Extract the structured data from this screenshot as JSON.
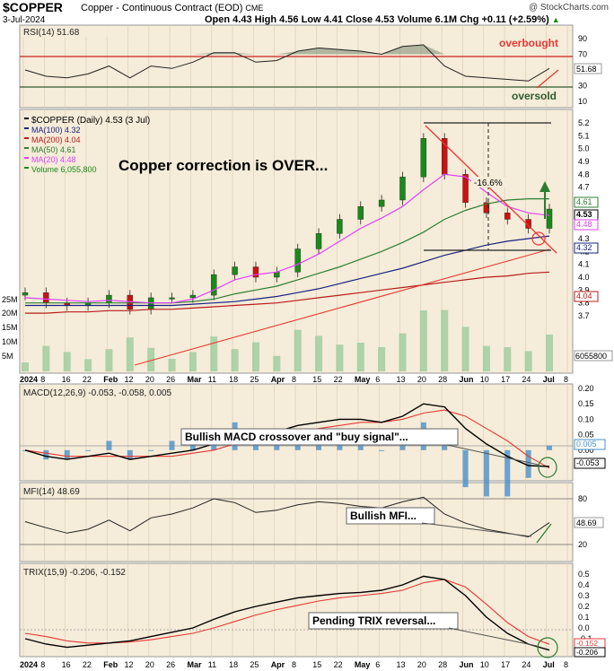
{
  "header": {
    "symbol": "$COPPER",
    "description": "Copper - Continuous Contract (EOD)",
    "exchange": "CME",
    "date": "3-Jul-2024",
    "stats": "Open 4.43  High 4.56  Low 4.41  Close 4.53  Volume 6.1M  Chg +0.11 (+2.59%)",
    "stats_arrow": "▲",
    "brand": "@ StockCharts.com"
  },
  "colors": {
    "panel_bg": "#f5ecd9",
    "grid": "#d9ccb0",
    "price_up": "#1a8a1a",
    "price_down": "#cc1111",
    "ma100": "#1a237e",
    "ma200": "#b71c1c",
    "ma50": "#2e7d32",
    "ma20": "#e040fb",
    "volume": "#9ccc9c",
    "macd_hist": "#4a90c8",
    "annotation_red": "#e53935",
    "annotation_green": "#2e7d32"
  },
  "rsi_panel": {
    "label": "RSI(14) 51.68",
    "ticks": [
      "90",
      "70",
      "50",
      "30",
      "10"
    ],
    "current": "51.68",
    "overbought_label": "overbought",
    "oversold_label": "oversold"
  },
  "price_panel": {
    "legend": [
      "$COPPER (Daily) 4.53 (3 Jul)",
      "MA(100) 4.32",
      "MA(200) 4.04",
      "MA(50) 4.61",
      "MA(20) 4.48",
      "Volume 6,055,800"
    ],
    "title_annotation": "Copper correction is OVER...",
    "pct_annotation": "-16.6%",
    "price_ticks": [
      "5.2",
      "5.1",
      "5.0",
      "4.9",
      "4.8",
      "4.7",
      "4.6",
      "4.5",
      "4.4",
      "4.3",
      "4.2",
      "4.1",
      "4.0",
      "3.9",
      "3.8",
      "3.7"
    ],
    "badges": [
      "4.61",
      "4.53",
      "4.48",
      "4.32",
      "4.04"
    ],
    "volume_ticks": [
      "25M",
      "20M",
      "15M",
      "10M",
      "5M"
    ],
    "volume_badge": "6055800"
  },
  "x_axis": {
    "labels": [
      "2024",
      "8",
      "16",
      "22",
      "Feb",
      "12",
      "20",
      "26",
      "Mar",
      "11",
      "18",
      "25",
      "Apr",
      "8",
      "15",
      "22",
      "May",
      "6",
      "13",
      "20",
      "28",
      "Jun",
      "10",
      "17",
      "24",
      "Jul",
      "8"
    ]
  },
  "macd_panel": {
    "label": "MACD(12,26,9) -0.053, -0.058, 0.005",
    "ticks": [
      "0.20",
      "0.15",
      "0.10",
      "0.05",
      "0.00",
      "-0.05"
    ],
    "badges": [
      "0.005",
      "-0.053"
    ],
    "annotation": "Bullish MACD crossover and \"buy signal\"..."
  },
  "mfi_panel": {
    "label": "MFI(14) 48.69",
    "ticks": [
      "80",
      "20"
    ],
    "badge": "48.69",
    "annotation": "Bullish MFI..."
  },
  "trix_panel": {
    "label": "TRIX(15,9) -0.206, -0.152",
    "ticks": [
      "0.5",
      "0.4",
      "0.3",
      "0.2",
      "0.1",
      "0.0",
      "-0.1",
      "-0.2"
    ],
    "badges": [
      "-0.152",
      "-0.206"
    ],
    "annotation": "Pending TRIX reversal..."
  },
  "chart_data": {
    "type": "line",
    "title": "$COPPER",
    "x": [
      "Jan 2",
      "Jan 8",
      "Jan 16",
      "Jan 22",
      "Feb 1",
      "Feb 12",
      "Feb 20",
      "Feb 26",
      "Mar 1",
      "Mar 11",
      "Mar 18",
      "Mar 25",
      "Apr 1",
      "Apr 8",
      "Apr 15",
      "Apr 22",
      "May 1",
      "May 6",
      "May 13",
      "May 20",
      "May 28",
      "Jun 3",
      "Jun 10",
      "Jun 17",
      "Jun 24",
      "Jul 3"
    ],
    "series": [
      {
        "name": "$COPPER (Daily)",
        "values": [
          3.88,
          3.8,
          3.78,
          3.8,
          3.86,
          3.75,
          3.84,
          3.84,
          3.86,
          4.02,
          4.08,
          4.0,
          4.04,
          4.22,
          4.34,
          4.45,
          4.55,
          4.6,
          4.78,
          5.08,
          4.8,
          4.58,
          4.5,
          4.45,
          4.38,
          4.53
        ]
      },
      {
        "name": "MA(20)",
        "values": [
          3.84,
          3.83,
          3.82,
          3.81,
          3.82,
          3.81,
          3.8,
          3.8,
          3.83,
          3.9,
          3.98,
          4.02,
          4.04,
          4.1,
          4.18,
          4.28,
          4.38,
          4.46,
          4.55,
          4.68,
          4.8,
          4.78,
          4.66,
          4.55,
          4.5,
          4.48
        ]
      },
      {
        "name": "MA(50)",
        "values": [
          3.8,
          3.8,
          3.8,
          3.8,
          3.8,
          3.8,
          3.8,
          3.8,
          3.81,
          3.83,
          3.87,
          3.9,
          3.93,
          3.98,
          4.03,
          4.08,
          4.14,
          4.2,
          4.27,
          4.35,
          4.45,
          4.52,
          4.57,
          4.6,
          4.61,
          4.61
        ]
      },
      {
        "name": "MA(100)",
        "values": [
          3.78,
          3.78,
          3.78,
          3.78,
          3.78,
          3.78,
          3.78,
          3.78,
          3.79,
          3.8,
          3.81,
          3.83,
          3.85,
          3.88,
          3.91,
          3.95,
          3.99,
          4.03,
          4.07,
          4.12,
          4.17,
          4.21,
          4.25,
          4.28,
          4.3,
          4.32
        ]
      },
      {
        "name": "MA(200)",
        "values": [
          3.72,
          3.72,
          3.73,
          3.73,
          3.74,
          3.74,
          3.75,
          3.75,
          3.76,
          3.77,
          3.78,
          3.79,
          3.8,
          3.82,
          3.84,
          3.86,
          3.88,
          3.9,
          3.92,
          3.94,
          3.96,
          3.98,
          4.0,
          4.01,
          4.03,
          4.04
        ]
      }
    ],
    "rsi": [
      50,
      42,
      40,
      45,
      55,
      40,
      55,
      52,
      60,
      72,
      72,
      60,
      62,
      74,
      78,
      76,
      74,
      70,
      80,
      82,
      55,
      42,
      40,
      38,
      36,
      52
    ],
    "macd": [
      0.0,
      -0.02,
      -0.03,
      -0.02,
      -0.01,
      -0.03,
      -0.02,
      -0.01,
      0.0,
      0.02,
      0.05,
      0.05,
      0.06,
      0.08,
      0.09,
      0.1,
      0.1,
      0.09,
      0.11,
      0.15,
      0.14,
      0.07,
      0.02,
      -0.02,
      -0.05,
      -0.053
    ],
    "macd_signal": [
      0.0,
      -0.01,
      -0.02,
      -0.02,
      -0.02,
      -0.02,
      -0.02,
      -0.02,
      -0.01,
      0.0,
      0.02,
      0.04,
      0.05,
      0.06,
      0.07,
      0.08,
      0.09,
      0.09,
      0.1,
      0.12,
      0.13,
      0.11,
      0.07,
      0.03,
      -0.02,
      -0.058
    ],
    "mfi": [
      50,
      42,
      35,
      40,
      52,
      38,
      55,
      60,
      68,
      80,
      75,
      62,
      65,
      72,
      76,
      74,
      70,
      68,
      76,
      82,
      60,
      48,
      40,
      35,
      30,
      48.69
    ],
    "trix": [
      -0.1,
      -0.15,
      -0.18,
      -0.16,
      -0.14,
      -0.12,
      -0.08,
      -0.04,
      0.0,
      0.08,
      0.15,
      0.2,
      0.24,
      0.28,
      0.3,
      0.32,
      0.33,
      0.35,
      0.4,
      0.48,
      0.45,
      0.3,
      0.1,
      -0.05,
      -0.15,
      -0.206
    ],
    "trix_signal": [
      -0.05,
      -0.08,
      -0.12,
      -0.14,
      -0.14,
      -0.13,
      -0.11,
      -0.08,
      -0.05,
      0.0,
      0.06,
      0.12,
      0.17,
      0.21,
      0.25,
      0.28,
      0.3,
      0.32,
      0.35,
      0.42,
      0.45,
      0.38,
      0.22,
      0.05,
      -0.08,
      -0.152
    ],
    "ylim": [
      3.65,
      5.25
    ]
  }
}
